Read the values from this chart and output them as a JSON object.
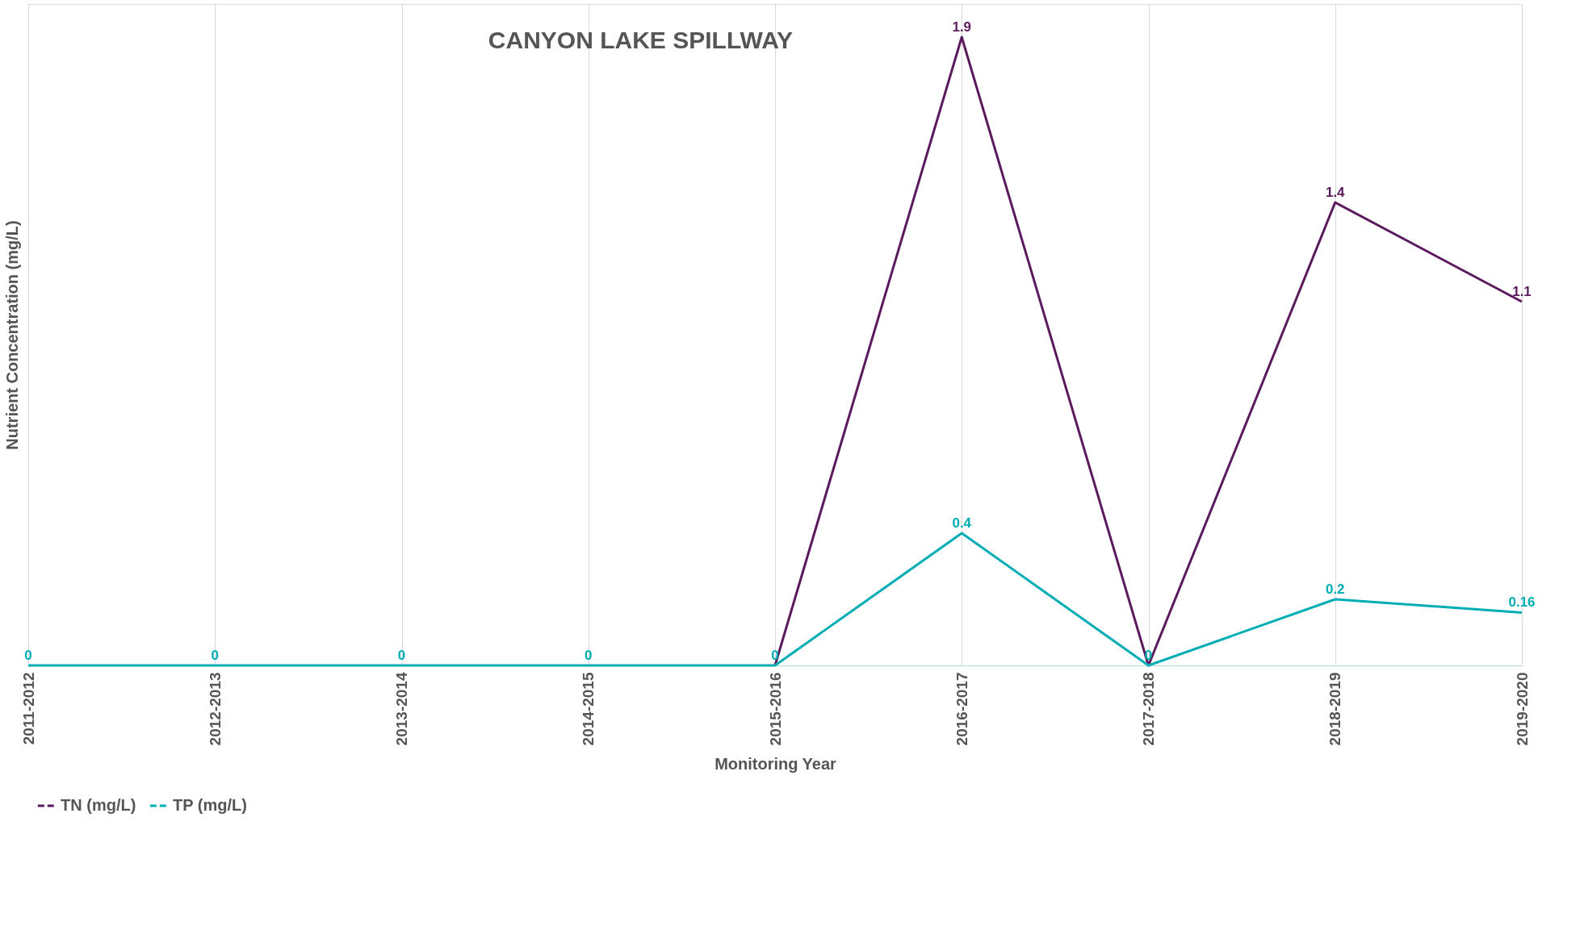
{
  "chart_data": {
    "type": "line",
    "title": "CANYON LAKE SPILLWAY",
    "xlabel": "Monitoring Year",
    "ylabel": "Nutrient Concentration (mg/L)",
    "categories": [
      "2011-2012",
      "2012-2013",
      "2013-2014",
      "2014-2015",
      "2015-2016",
      "2016-2017",
      "2017-2018",
      "2018-2019",
      "2019-2020"
    ],
    "ylim": [
      0,
      2
    ],
    "tick_labels": "x",
    "grid": "x",
    "legend": "bottom",
    "marker": "none",
    "line_style": "solid",
    "series": [
      {
        "name": "TN (mg/L)",
        "color": "#5b1a5e",
        "values": [
          null,
          null,
          null,
          null,
          0,
          1.9,
          0,
          1.4,
          1.1
        ],
        "value_labels": [
          null,
          null,
          null,
          null,
          null,
          "1.9",
          null,
          "1.4",
          "1.1"
        ]
      },
      {
        "name": "TP (mg/L)",
        "color": "#00adb5",
        "values": [
          0,
          0,
          0,
          0,
          0,
          0.4,
          0,
          0.2,
          0.16
        ],
        "value_labels": [
          "0",
          "0",
          "0",
          "0",
          "0",
          "0.4",
          "0",
          "0.2",
          "0.16"
        ]
      }
    ]
  }
}
